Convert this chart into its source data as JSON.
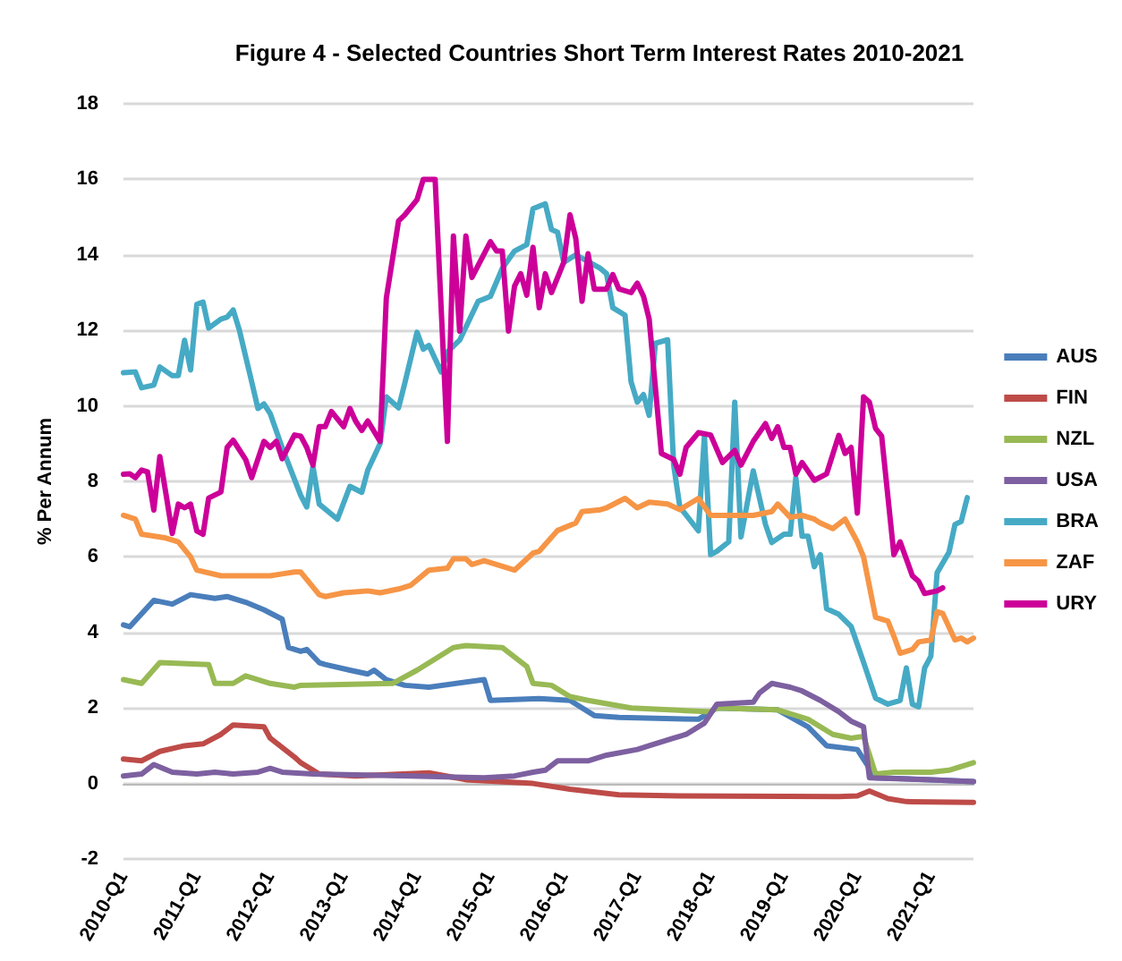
{
  "chart_data": {
    "type": "line",
    "title": "Figure 4 - Selected Countries Short Term Interest Rates 2010-2021",
    "ylabel": "% Per Annum",
    "xlim": [
      "2010-01",
      "2021-08"
    ],
    "xticks": [
      {
        "value": "2010-01",
        "label": "2010-Q1"
      },
      {
        "value": "2011-01",
        "label": "2011-Q1"
      },
      {
        "value": "2012-01",
        "label": "2012-Q1"
      },
      {
        "value": "2013-01",
        "label": "2013-Q1"
      },
      {
        "value": "2014-01",
        "label": "2014-Q1"
      },
      {
        "value": "2015-01",
        "label": "2015-Q1"
      },
      {
        "value": "2016-01",
        "label": "2016-Q1"
      },
      {
        "value": "2017-01",
        "label": "2017-Q1"
      },
      {
        "value": "2018-01",
        "label": "2018-Q1"
      },
      {
        "value": "2019-01",
        "label": "2019-Q1"
      },
      {
        "value": "2020-01",
        "label": "2020-Q1"
      },
      {
        "value": "2021-01",
        "label": "2021-Q1"
      }
    ],
    "ylim": [
      -2,
      18
    ],
    "yticks": [
      -2,
      0,
      2,
      4,
      6,
      8,
      10,
      12,
      14,
      16,
      18
    ],
    "grid": "y",
    "legend": "right",
    "marker": "none",
    "line_style": "solid",
    "series": [
      {
        "name": "AUS",
        "color": "#4a7ebb",
        "x": [
          "2010-01",
          "2010-02",
          "2010-06",
          "2010-09",
          "2010-12",
          "2011-04",
          "2011-06",
          "2011-09",
          "2011-12",
          "2012-03",
          "2012-04",
          "2012-06",
          "2012-07",
          "2012-09",
          "2012-10",
          "2013-02",
          "2013-05",
          "2013-06",
          "2013-08",
          "2013-11",
          "2014-03",
          "2014-12",
          "2015-01",
          "2015-09",
          "2016-02",
          "2016-06",
          "2016-10",
          "2017-11",
          "2018-02",
          "2018-12",
          "2019-05",
          "2019-08",
          "2020-01",
          "2020-04",
          "2021-01",
          "2021-08"
        ],
        "values": [
          4.2,
          4.15,
          4.85,
          4.75,
          5.0,
          4.9,
          4.95,
          4.8,
          4.6,
          4.35,
          3.6,
          3.5,
          3.55,
          3.2,
          3.15,
          3.0,
          2.9,
          3.0,
          2.75,
          2.6,
          2.55,
          2.75,
          2.2,
          2.25,
          2.2,
          1.8,
          1.75,
          1.7,
          2.0,
          1.95,
          1.5,
          1.0,
          0.9,
          0.15,
          0.1,
          0.05
        ]
      },
      {
        "name": "FIN",
        "color": "#be4b48",
        "x": [
          "2010-01",
          "2010-04",
          "2010-07",
          "2010-11",
          "2011-02",
          "2011-05",
          "2011-07",
          "2011-12",
          "2012-01",
          "2012-05",
          "2012-06",
          "2012-09",
          "2013-03",
          "2014-03",
          "2014-09",
          "2015-08",
          "2016-02",
          "2016-10",
          "2017-08",
          "2019-10",
          "2020-01",
          "2020-03",
          "2020-06",
          "2020-09",
          "2021-08"
        ],
        "values": [
          0.65,
          0.6,
          0.85,
          1.0,
          1.05,
          1.3,
          1.55,
          1.5,
          1.2,
          0.7,
          0.55,
          0.25,
          0.2,
          0.28,
          0.1,
          0.0,
          -0.15,
          -0.3,
          -0.33,
          -0.35,
          -0.33,
          -0.2,
          -0.4,
          -0.48,
          -0.5
        ]
      },
      {
        "name": "NZL",
        "color": "#98b954",
        "x": [
          "2010-01",
          "2010-04",
          "2010-07",
          "2011-03",
          "2011-04",
          "2011-07",
          "2011-09",
          "2012-01",
          "2012-05",
          "2012-06",
          "2013-09",
          "2014-01",
          "2014-07",
          "2014-09",
          "2015-03",
          "2015-07",
          "2015-08",
          "2015-11",
          "2016-02",
          "2016-05",
          "2016-12",
          "2018-01",
          "2018-02",
          "2018-12",
          "2019-05",
          "2019-09",
          "2019-12",
          "2020-02",
          "2020-04",
          "2020-07",
          "2021-01",
          "2021-04",
          "2021-08"
        ],
        "values": [
          2.75,
          2.65,
          3.2,
          3.15,
          2.65,
          2.65,
          2.85,
          2.65,
          2.55,
          2.6,
          2.65,
          3.0,
          3.6,
          3.65,
          3.6,
          3.1,
          2.65,
          2.6,
          2.3,
          2.2,
          2.0,
          1.9,
          2.0,
          1.95,
          1.7,
          1.3,
          1.2,
          1.25,
          0.25,
          0.3,
          0.3,
          0.35,
          0.55
        ]
      },
      {
        "name": "USA",
        "color": "#7d60a0",
        "x": [
          "2010-01",
          "2010-04",
          "2010-06",
          "2010-09",
          "2011-01",
          "2011-04",
          "2011-07",
          "2011-11",
          "2012-01",
          "2012-03",
          "2012-08",
          "2013-12",
          "2014-12",
          "2015-05",
          "2015-08",
          "2015-10",
          "2015-12",
          "2016-05",
          "2016-08",
          "2017-01",
          "2017-03",
          "2017-07",
          "2017-09",
          "2017-12",
          "2018-02",
          "2018-08",
          "2018-09",
          "2018-11",
          "2019-02",
          "2019-04",
          "2019-07",
          "2019-10",
          "2019-12",
          "2020-02",
          "2020-03",
          "2021-01",
          "2021-08"
        ],
        "values": [
          0.2,
          0.25,
          0.5,
          0.3,
          0.25,
          0.3,
          0.25,
          0.3,
          0.4,
          0.3,
          0.25,
          0.2,
          0.15,
          0.2,
          0.3,
          0.35,
          0.6,
          0.6,
          0.75,
          0.9,
          1.0,
          1.2,
          1.3,
          1.6,
          2.1,
          2.15,
          2.4,
          2.65,
          2.55,
          2.45,
          2.2,
          1.9,
          1.65,
          1.5,
          0.15,
          0.1,
          0.05
        ]
      },
      {
        "name": "BRA",
        "color": "#46aac5",
        "x": [
          "2010-01",
          "2010-03",
          "2010-04",
          "2010-06",
          "2010-07",
          "2010-09",
          "2010-10",
          "2010-11",
          "2010-12",
          "2011-01",
          "2011-02",
          "2011-03",
          "2011-05",
          "2011-06",
          "2011-07",
          "2011-08",
          "2011-10",
          "2011-11",
          "2011-12",
          "2012-01",
          "2012-03",
          "2012-06",
          "2012-07",
          "2012-08",
          "2012-09",
          "2012-12",
          "2013-02",
          "2013-04",
          "2013-05",
          "2013-07",
          "2013-08",
          "2013-10",
          "2013-11",
          "2014-01",
          "2014-02",
          "2014-03",
          "2014-05",
          "2014-06",
          "2014-08",
          "2014-11",
          "2015-01",
          "2015-03",
          "2015-05",
          "2015-07",
          "2015-08",
          "2015-10",
          "2015-11",
          "2015-12",
          "2016-01",
          "2016-03",
          "2016-07",
          "2016-08",
          "2016-09",
          "2016-11",
          "2016-12",
          "2017-01",
          "2017-02",
          "2017-03",
          "2017-04",
          "2017-06",
          "2017-07",
          "2017-08",
          "2017-11",
          "2017-12",
          "2018-01",
          "2018-02",
          "2018-04",
          "2018-05",
          "2018-06",
          "2018-08",
          "2018-10",
          "2018-11",
          "2019-01",
          "2019-02",
          "2019-03",
          "2019-04",
          "2019-05",
          "2019-06",
          "2019-07",
          "2019-08",
          "2019-10",
          "2019-12",
          "2020-02",
          "2020-04",
          "2020-06",
          "2020-08",
          "2020-09",
          "2020-10",
          "2020-11",
          "2020-12",
          "2021-01",
          "2021-02",
          "2021-04",
          "2021-05",
          "2021-06",
          "2021-07"
        ],
        "values": [
          10.88,
          10.9,
          10.48,
          10.55,
          11.03,
          10.8,
          10.8,
          11.74,
          10.95,
          12.69,
          12.75,
          12.06,
          12.3,
          12.35,
          12.54,
          12.0,
          10.64,
          9.93,
          10.05,
          9.8,
          8.89,
          7.63,
          7.32,
          8.4,
          7.4,
          7.0,
          7.87,
          7.71,
          8.3,
          9.0,
          10.24,
          9.95,
          10.6,
          11.95,
          11.5,
          11.6,
          10.9,
          11.43,
          11.74,
          12.77,
          12.9,
          13.64,
          14.1,
          14.27,
          15.22,
          15.35,
          14.67,
          14.6,
          13.8,
          14.0,
          13.64,
          13.5,
          12.6,
          12.4,
          10.64,
          10.1,
          10.3,
          9.75,
          11.66,
          11.75,
          8.43,
          7.32,
          6.69,
          9.2,
          6.06,
          6.15,
          6.4,
          10.1,
          6.53,
          8.28,
          6.86,
          6.38,
          6.6,
          6.6,
          8.1,
          6.55,
          6.55,
          5.74,
          6.06,
          4.63,
          4.48,
          4.16,
          3.21,
          2.26,
          2.1,
          2.2,
          3.06,
          2.1,
          2.03,
          3.06,
          3.37,
          5.58,
          6.12,
          6.86,
          6.94,
          7.57
        ]
      },
      {
        "name": "ZAF",
        "color": "#f69546",
        "x": [
          "2010-01",
          "2010-03",
          "2010-04",
          "2010-08",
          "2010-10",
          "2010-12",
          "2011-01",
          "2011-05",
          "2012-01",
          "2012-03",
          "2012-05",
          "2012-06",
          "2012-09",
          "2012-10",
          "2013-01",
          "2013-05",
          "2013-07",
          "2013-10",
          "2013-12",
          "2014-03",
          "2014-06",
          "2014-07",
          "2014-09",
          "2014-10",
          "2014-12",
          "2015-03",
          "2015-05",
          "2015-08",
          "2015-09",
          "2015-12",
          "2016-03",
          "2016-04",
          "2016-07",
          "2016-08",
          "2016-11",
          "2017-01",
          "2017-03",
          "2017-06",
          "2017-08",
          "2017-11",
          "2018-01",
          "2018-08",
          "2018-11",
          "2018-12",
          "2019-02",
          "2019-04",
          "2019-06",
          "2019-07",
          "2019-09",
          "2019-11",
          "2020-01",
          "2020-02",
          "2020-04",
          "2020-06",
          "2020-07",
          "2020-08",
          "2020-10",
          "2020-11",
          "2021-01",
          "2021-02",
          "2021-03",
          "2021-05",
          "2021-06",
          "2021-07",
          "2021-08"
        ],
        "values": [
          7.1,
          7.0,
          6.6,
          6.5,
          6.4,
          6.0,
          5.65,
          5.5,
          5.5,
          5.55,
          5.6,
          5.6,
          5.0,
          4.95,
          5.05,
          5.1,
          5.05,
          5.15,
          5.25,
          5.65,
          5.7,
          5.95,
          5.95,
          5.8,
          5.9,
          5.75,
          5.65,
          6.1,
          6.15,
          6.7,
          6.9,
          7.2,
          7.25,
          7.3,
          7.55,
          7.3,
          7.45,
          7.4,
          7.25,
          7.55,
          7.1,
          7.1,
          7.2,
          7.4,
          7.05,
          7.1,
          7.0,
          6.9,
          6.75,
          7.0,
          6.4,
          6.0,
          4.4,
          4.3,
          3.9,
          3.45,
          3.55,
          3.75,
          3.8,
          4.55,
          4.5,
          3.8,
          3.85,
          3.75,
          3.85
        ]
      },
      {
        "name": "URY",
        "color": "#cc0099",
        "x": [
          "2010-01",
          "2010-02",
          "2010-03",
          "2010-04",
          "2010-05",
          "2010-06",
          "2010-07",
          "2010-08",
          "2010-09",
          "2010-10",
          "2010-11",
          "2010-12",
          "2011-01",
          "2011-02",
          "2011-03",
          "2011-05",
          "2011-06",
          "2011-07",
          "2011-09",
          "2011-10",
          "2011-12",
          "2012-01",
          "2012-02",
          "2012-03",
          "2012-05",
          "2012-06",
          "2012-07",
          "2012-08",
          "2012-09",
          "2012-10",
          "2012-11",
          "2013-01",
          "2013-02",
          "2013-03",
          "2013-04",
          "2013-05",
          "2013-07",
          "2013-08",
          "2013-10",
          "2013-11",
          "2014-01",
          "2014-02",
          "2014-04",
          "2014-06",
          "2014-07",
          "2014-08",
          "2014-09",
          "2014-10",
          "2015-01",
          "2015-02",
          "2015-03",
          "2015-04",
          "2015-05",
          "2015-06",
          "2015-07",
          "2015-08",
          "2015-09",
          "2015-10",
          "2015-11",
          "2016-01",
          "2016-02",
          "2016-03",
          "2016-04",
          "2016-05",
          "2016-06",
          "2016-08",
          "2016-09",
          "2016-10",
          "2016-12",
          "2017-01",
          "2017-02",
          "2017-03",
          "2017-05",
          "2017-07",
          "2017-08",
          "2017-09",
          "2017-11",
          "2018-01",
          "2018-03",
          "2018-05",
          "2018-06",
          "2018-08",
          "2018-10",
          "2018-11",
          "2018-12",
          "2019-01",
          "2019-02",
          "2019-03",
          "2019-04",
          "2019-06",
          "2019-08",
          "2019-10",
          "2019-11",
          "2019-12",
          "2020-01",
          "2020-02",
          "2020-03",
          "2020-04",
          "2020-05",
          "2020-07",
          "2020-08",
          "2020-10",
          "2020-11",
          "2020-12",
          "2021-02",
          "2021-03"
        ],
        "values": [
          8.19,
          8.2,
          8.1,
          8.3,
          8.25,
          7.24,
          8.66,
          7.65,
          6.62,
          7.4,
          7.3,
          7.4,
          6.69,
          6.6,
          7.56,
          7.72,
          8.9,
          9.09,
          8.58,
          8.1,
          9.06,
          8.9,
          9.06,
          8.6,
          9.23,
          9.2,
          8.9,
          8.43,
          9.45,
          9.45,
          9.85,
          9.45,
          9.93,
          9.6,
          9.35,
          9.6,
          9.06,
          12.85,
          14.9,
          15.06,
          15.46,
          16.0,
          16.0,
          9.06,
          14.5,
          11.98,
          14.5,
          13.4,
          14.35,
          14.1,
          14.1,
          11.98,
          13.17,
          13.5,
          12.93,
          14.2,
          12.6,
          13.5,
          13.0,
          13.8,
          15.06,
          14.43,
          12.77,
          14.03,
          13.09,
          13.09,
          13.48,
          13.1,
          13.0,
          13.25,
          12.9,
          12.3,
          8.74,
          8.58,
          8.19,
          8.9,
          9.29,
          9.23,
          8.5,
          8.82,
          8.43,
          9.06,
          9.53,
          9.14,
          9.45,
          8.9,
          8.9,
          8.19,
          8.5,
          8.03,
          8.2,
          9.22,
          8.74,
          8.9,
          7.16,
          10.24,
          10.1,
          9.4,
          9.2,
          6.06,
          6.4,
          5.5,
          5.35,
          5.03,
          5.1,
          5.18
        ]
      }
    ]
  }
}
